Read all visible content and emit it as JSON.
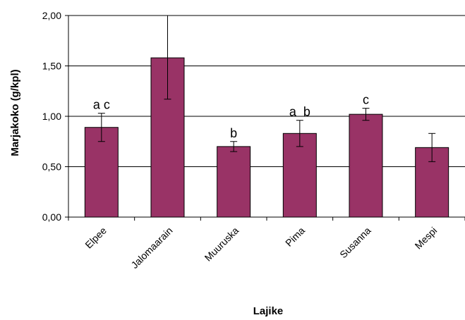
{
  "chart_data": {
    "type": "bar",
    "title": "",
    "xlabel": "Lajike",
    "ylabel": "Marjakoko (g/kpl)",
    "categories": [
      "Elpee",
      "Jalomaarain",
      "Muuruska",
      "Pima",
      "Susanna",
      "Mespi"
    ],
    "values": [
      0.89,
      1.58,
      0.7,
      0.83,
      1.02,
      0.69
    ],
    "error_low": [
      0.75,
      1.17,
      0.65,
      0.7,
      0.96,
      0.55
    ],
    "error_high": [
      1.03,
      2.0,
      0.75,
      0.96,
      1.08,
      0.83
    ],
    "significance_labels": [
      "a c",
      "",
      "b",
      "a  b",
      "c",
      ""
    ],
    "y_ticks": [
      0,
      0.5,
      1.0,
      1.5,
      2.0
    ],
    "y_tick_labels": [
      "0,00",
      "0,50",
      "1,00",
      "1,50",
      "2,00"
    ],
    "ylim": [
      0,
      2.0
    ],
    "grid": true,
    "legend": "none",
    "bar_color": "#993366",
    "bar_edge_color": "#000000"
  }
}
